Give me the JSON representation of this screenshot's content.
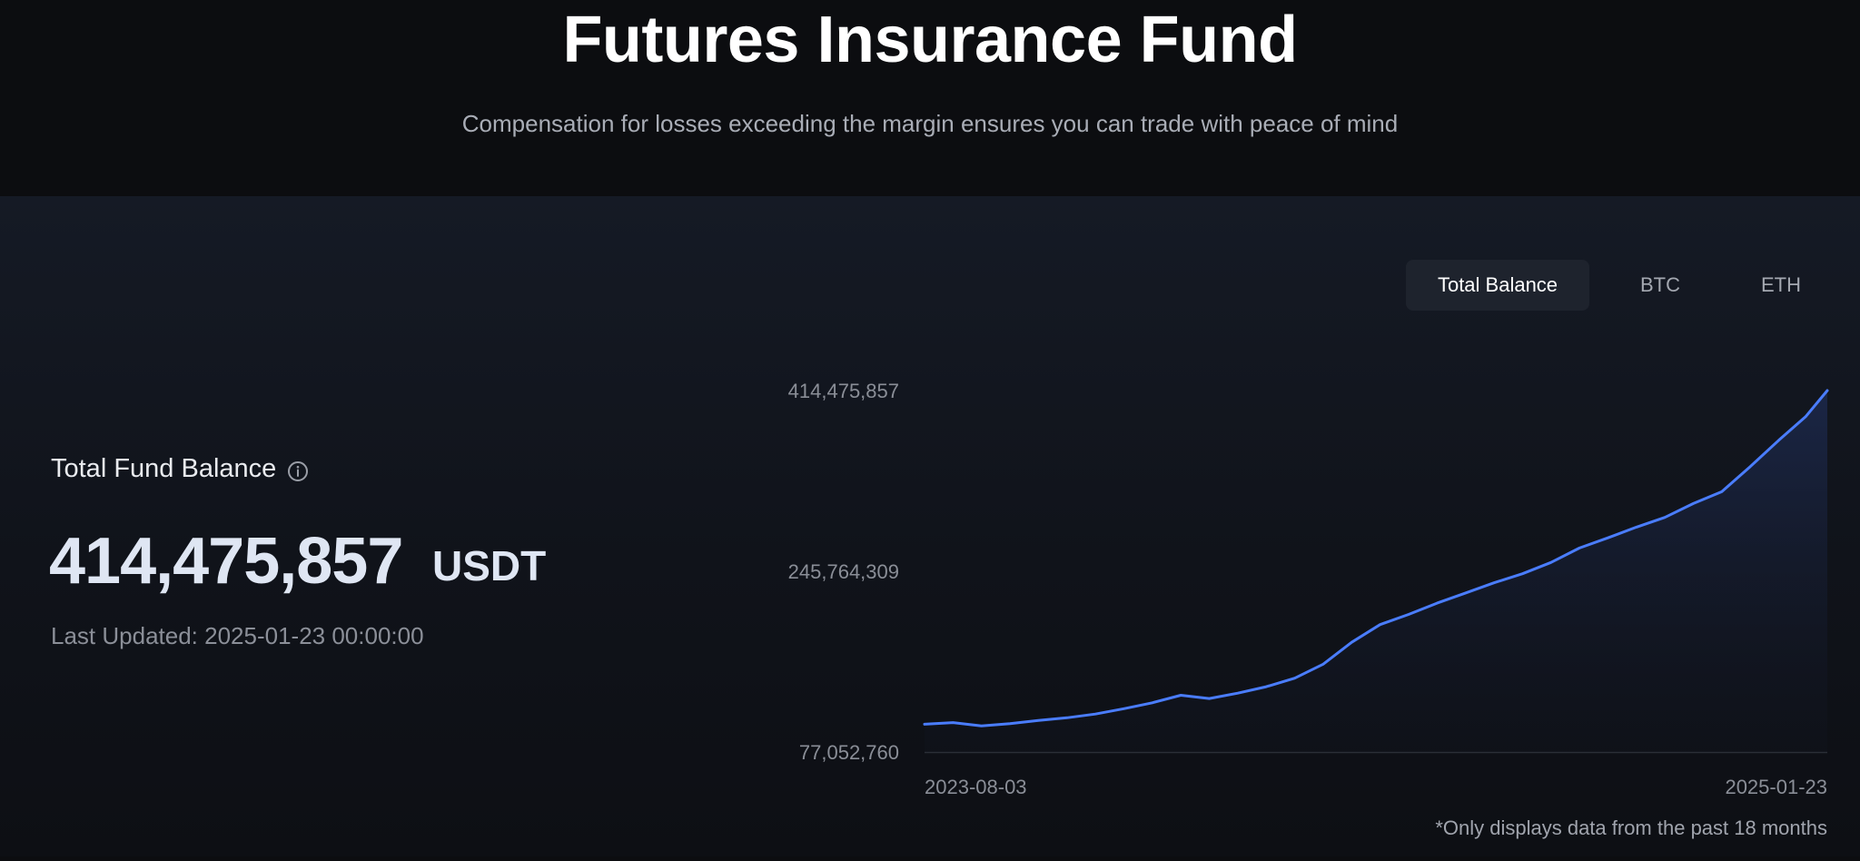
{
  "header": {
    "title": "Futures Insurance Fund",
    "subtitle": "Compensation for losses exceeding the margin ensures you can trade with peace of mind"
  },
  "summary": {
    "label": "Total Fund Balance",
    "info_icon": "info-circle-icon",
    "value": "414,475,857",
    "unit": "USDT",
    "last_updated": "Last Updated: 2025-01-23 00:00:00"
  },
  "tabs": [
    {
      "label": "Total Balance",
      "active": true
    },
    {
      "label": "BTC",
      "active": false
    },
    {
      "label": "ETH",
      "active": false
    }
  ],
  "footnote": "*Only displays data from the past 18 months",
  "colors": {
    "line": "#4a7dff",
    "area_top": "#1b2748",
    "axis_text": "#8a8e97",
    "baseline": "#2a2e37"
  },
  "chart_data": {
    "type": "area",
    "y_ticks": [
      "414,475,857",
      "245,764,309",
      "77,052,760"
    ],
    "ylim": [
      77052760,
      414475857
    ],
    "x_tick_labels": [
      "2023-08-03",
      "2025-01-23"
    ],
    "x": [
      "2023-08-03",
      "2023-08-20",
      "2023-09-06",
      "2023-09-23",
      "2023-10-10",
      "2023-10-27",
      "2023-11-13",
      "2023-11-30",
      "2023-12-17",
      "2024-01-03",
      "2024-01-20",
      "2024-02-06",
      "2024-02-23",
      "2024-03-11",
      "2024-03-28",
      "2024-04-14",
      "2024-05-01",
      "2024-05-18",
      "2024-06-04",
      "2024-06-21",
      "2024-07-08",
      "2024-07-25",
      "2024-08-11",
      "2024-08-28",
      "2024-09-14",
      "2024-10-01",
      "2024-10-18",
      "2024-11-04",
      "2024-11-21",
      "2024-12-08",
      "2024-12-25",
      "2025-01-10",
      "2025-01-23"
    ],
    "series": [
      {
        "values": [
          103000000,
          104500000,
          101500000,
          103500000,
          106500000,
          109000000,
          112500000,
          117500000,
          123000000,
          130000000,
          127000000,
          132000000,
          138000000,
          146000000,
          159000000,
          179500000,
          196000000,
          205500000,
          216000000,
          225500000,
          235000000,
          243500000,
          254000000,
          267500000,
          277000000,
          287000000,
          296000000,
          309000000,
          320000000,
          343500000,
          368000000,
          390000000,
          414475857
        ]
      }
    ]
  }
}
